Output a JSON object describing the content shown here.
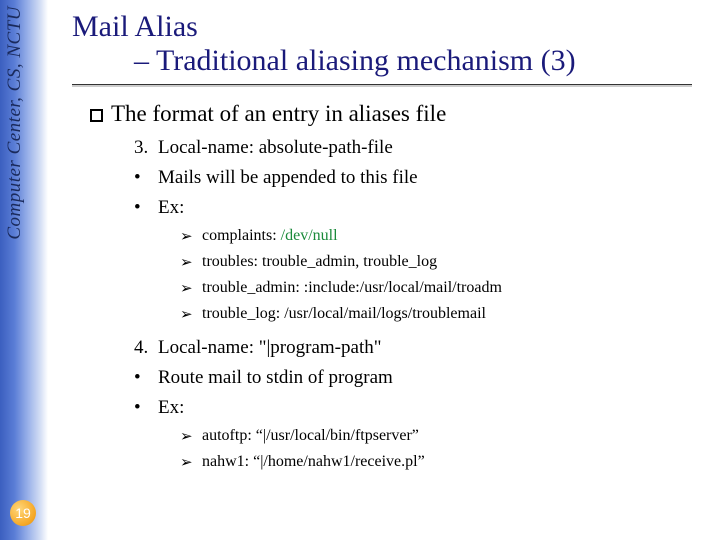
{
  "sidebar": {
    "label": "Computer Center, CS, NCTU",
    "text_color": "#1a2a5c",
    "fontsize": 19
  },
  "page_number": "19",
  "title": {
    "line1": "Mail Alias",
    "line2": "– Traditional aliasing mechanism (3)",
    "color": "#1a1a7a",
    "fontsize": 30
  },
  "main_point": {
    "text": "The format of an entry in aliases file",
    "fontsize": 23
  },
  "sections": {
    "s3": {
      "num": "3.",
      "heading": "Local-name: absolute-path-file",
      "b1": "Mails will be appended to this file",
      "b2": "Ex:",
      "ex1_pre": "complaints: ",
      "ex1_green": "/dev/null",
      "ex2": "troubles: trouble_admin, trouble_log",
      "ex3": "trouble_admin: :include:/usr/local/mail/troadm",
      "ex4": "trouble_log: /usr/local/mail/logs/troublemail"
    },
    "s4": {
      "num": "4.",
      "heading": "Local-name: \"|program-path\"",
      "b1": "Route mail to stdin of program",
      "b2": "Ex:",
      "ex1": "autoftp: “|/usr/local/bin/ftpserver”",
      "ex2": "nahw1: “|/home/nahw1/receive.pl”"
    }
  },
  "colors": {
    "green": "#1a8a3a",
    "title": "#1a1a7a",
    "background": "#ffffff"
  }
}
